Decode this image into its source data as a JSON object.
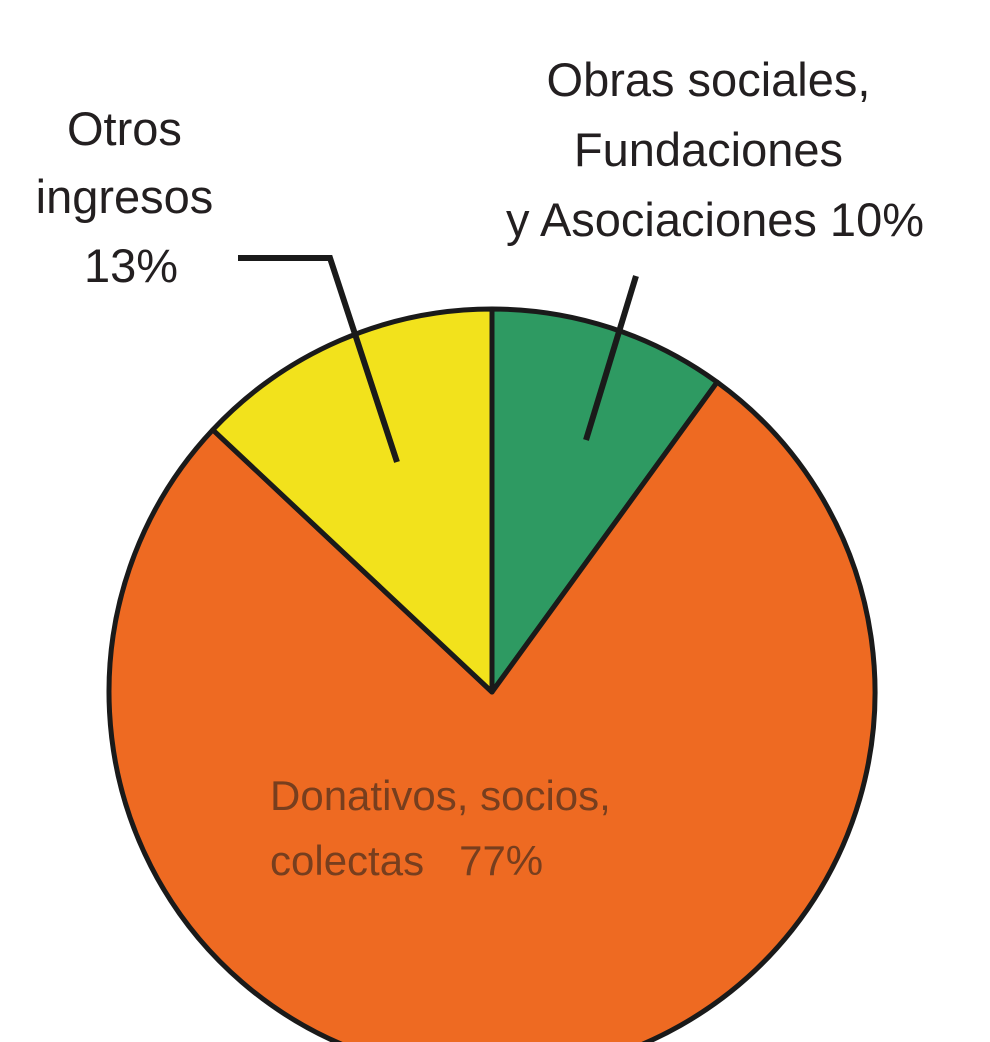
{
  "chart_data": {
    "type": "pie",
    "start": "12 o'clock",
    "direction": "clockwise",
    "slices": [
      {
        "label_lines": [
          "Obras sociales,",
          "Fundaciones",
          "y Asociaciones 10%"
        ],
        "value": 10,
        "color": "#2e9a62"
      },
      {
        "label_lines": [
          "Donativos, socios,",
          "colectas   77%"
        ],
        "value": 77,
        "color": "#ee6a22"
      },
      {
        "label_lines": [
          "Otros",
          "ingresos",
          "13%"
        ],
        "value": 13,
        "color": "#f2e21c"
      }
    ],
    "outline_color": "#1a1a1a"
  }
}
